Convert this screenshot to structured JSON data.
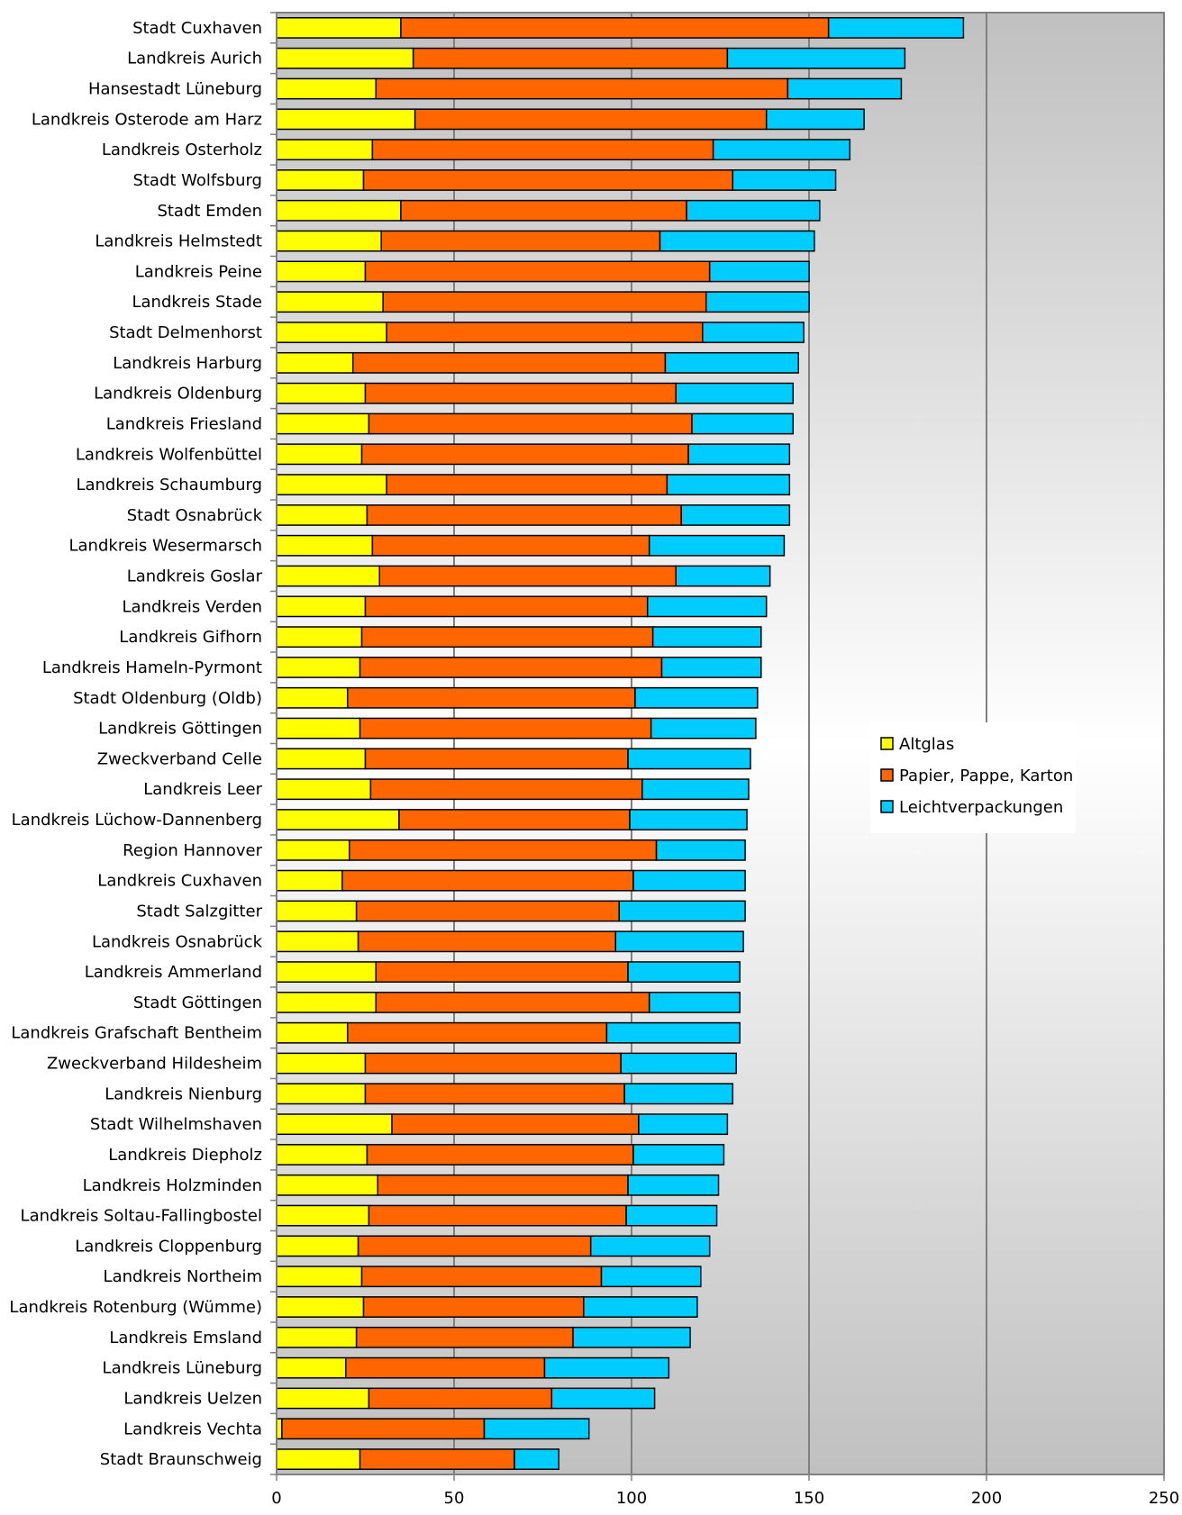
{
  "chart_data": {
    "type": "bar",
    "orientation": "horizontal",
    "stacked": true,
    "title": "",
    "xlabel": "",
    "ylabel": "",
    "xlim": [
      0,
      250
    ],
    "xticks": [
      0,
      50,
      100,
      150,
      200,
      250
    ],
    "grid": "vertical gridlines",
    "legend_position": "right",
    "plot_background": "grey gradient (light centre)",
    "categories": [
      "Stadt Cuxhaven",
      "Landkreis Aurich",
      "Hansestadt Lüneburg",
      "Landkreis Osterode am Harz",
      "Landkreis Osterholz",
      "Stadt Wolfsburg",
      "Stadt Emden",
      "Landkreis Helmstedt",
      "Landkreis Peine",
      "Landkreis Stade",
      "Stadt Delmenhorst",
      "Landkreis Harburg",
      "Landkreis Oldenburg",
      "Landkreis Friesland",
      "Landkreis Wolfenbüttel",
      "Landkreis Schaumburg",
      "Stadt Osnabrück",
      "Landkreis Wesermarsch",
      "Landkreis Goslar",
      "Landkreis Verden",
      "Landkreis Gifhorn",
      "Landkreis Hameln-Pyrmont",
      "Stadt Oldenburg (Oldb)",
      "Landkreis Göttingen",
      "Zweckverband Celle",
      "Landkreis Leer",
      "Landkreis Lüchow-Dannenberg",
      "Region Hannover",
      "Landkreis Cuxhaven",
      "Stadt Salzgitter",
      "Landkreis Osnabrück",
      "Landkreis Ammerland",
      "Stadt Göttingen",
      "Landkreis Grafschaft Bentheim",
      "Zweckverband Hildesheim",
      "Landkreis Nienburg",
      "Stadt Wilhelmshaven",
      "Landkreis Diepholz",
      "Landkreis Holzminden",
      "Landkreis Soltau-Fallingbostel",
      "Landkreis Cloppenburg",
      "Landkreis Northeim",
      "Landkreis Rotenburg (Wümme)",
      "Landkreis Emsland",
      "Landkreis Lüneburg",
      "Landkreis Uelzen",
      "Landkreis Vechta",
      "Stadt Braunschweig"
    ],
    "series": [
      {
        "name": "Altglas",
        "color": "#FFFF00",
        "values": [
          35,
          38.5,
          28,
          39,
          27,
          24.5,
          35,
          29.5,
          25,
          30,
          31,
          21.5,
          25,
          26,
          24,
          31,
          25.5,
          27,
          29,
          25,
          24,
          23.5,
          20,
          23.5,
          25,
          26.5,
          34.5,
          20.5,
          18.5,
          22.5,
          23,
          28,
          28,
          20,
          25,
          25,
          32.5,
          25.5,
          28.5,
          26,
          23,
          24,
          24.5,
          22.5,
          19.5,
          26,
          1.5,
          23.5
        ]
      },
      {
        "name": "Papier, Pappe, Karton",
        "color": "#FF6600",
        "values": [
          120.5,
          88.5,
          116,
          99,
          96,
          104,
          80.5,
          78.5,
          97,
          91,
          89,
          88,
          87.5,
          91,
          92,
          79,
          88.5,
          78,
          83.5,
          79.5,
          82,
          85,
          81,
          82,
          74,
          76.5,
          65,
          86.5,
          82,
          74,
          72.5,
          71,
          77,
          73,
          72,
          73,
          69.5,
          75,
          70.5,
          72.5,
          65.5,
          67.5,
          62,
          61,
          56,
          51.5,
          57,
          43.5
        ]
      },
      {
        "name": "Leichtverpackungen",
        "color": "#00CCFF",
        "values": [
          38,
          50,
          32,
          27.5,
          38.5,
          29,
          37.5,
          43.5,
          28,
          29,
          28.5,
          37.5,
          33,
          28.5,
          28.5,
          34.5,
          30.5,
          38,
          26.5,
          33.5,
          30.5,
          28,
          34.5,
          29.5,
          34.5,
          30,
          33,
          25,
          31.5,
          35.5,
          36,
          31.5,
          25.5,
          37.5,
          32.5,
          30.5,
          25,
          25.5,
          25.5,
          25.5,
          33.5,
          28,
          32,
          33,
          35,
          29,
          29.5,
          12.5
        ]
      }
    ]
  }
}
